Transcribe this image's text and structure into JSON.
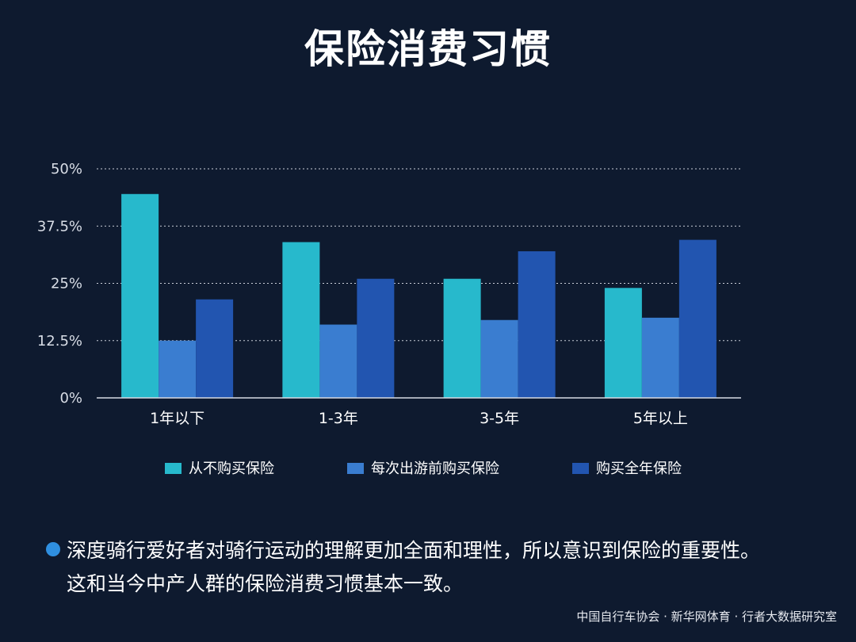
{
  "title": "保险消费习惯",
  "chart_data": {
    "type": "bar",
    "categories": [
      "1年以下",
      "1-3年",
      "3-5年",
      "5年以上"
    ],
    "series": [
      {
        "name": "从不购买保险",
        "color": "#27b9cc",
        "values": [
          44.5,
          34,
          26,
          24
        ]
      },
      {
        "name": "每次出游前购买保险",
        "color": "#3a7dd0",
        "values": [
          12.5,
          16,
          17,
          17.5
        ]
      },
      {
        "name": "购买全年保险",
        "color": "#2255b0",
        "values": [
          21.5,
          26,
          32,
          34.5
        ]
      }
    ],
    "yticks": [
      "0%",
      "12.5%",
      "25%",
      "37.5%",
      "50%"
    ],
    "ytick_values": [
      0,
      12.5,
      25,
      37.5,
      50
    ],
    "ylim": [
      0,
      50
    ],
    "grid": true,
    "legend_position": "bottom"
  },
  "note": {
    "line1": "深度骑行爱好者对骑行运动的理解更加全面和理性，所以意识到保险的重要性。",
    "line2": "这和当今中产人群的保险消费习惯基本一致。"
  },
  "source": "中国自行车协会 · 新华网体育 · 行者大数据研究室"
}
